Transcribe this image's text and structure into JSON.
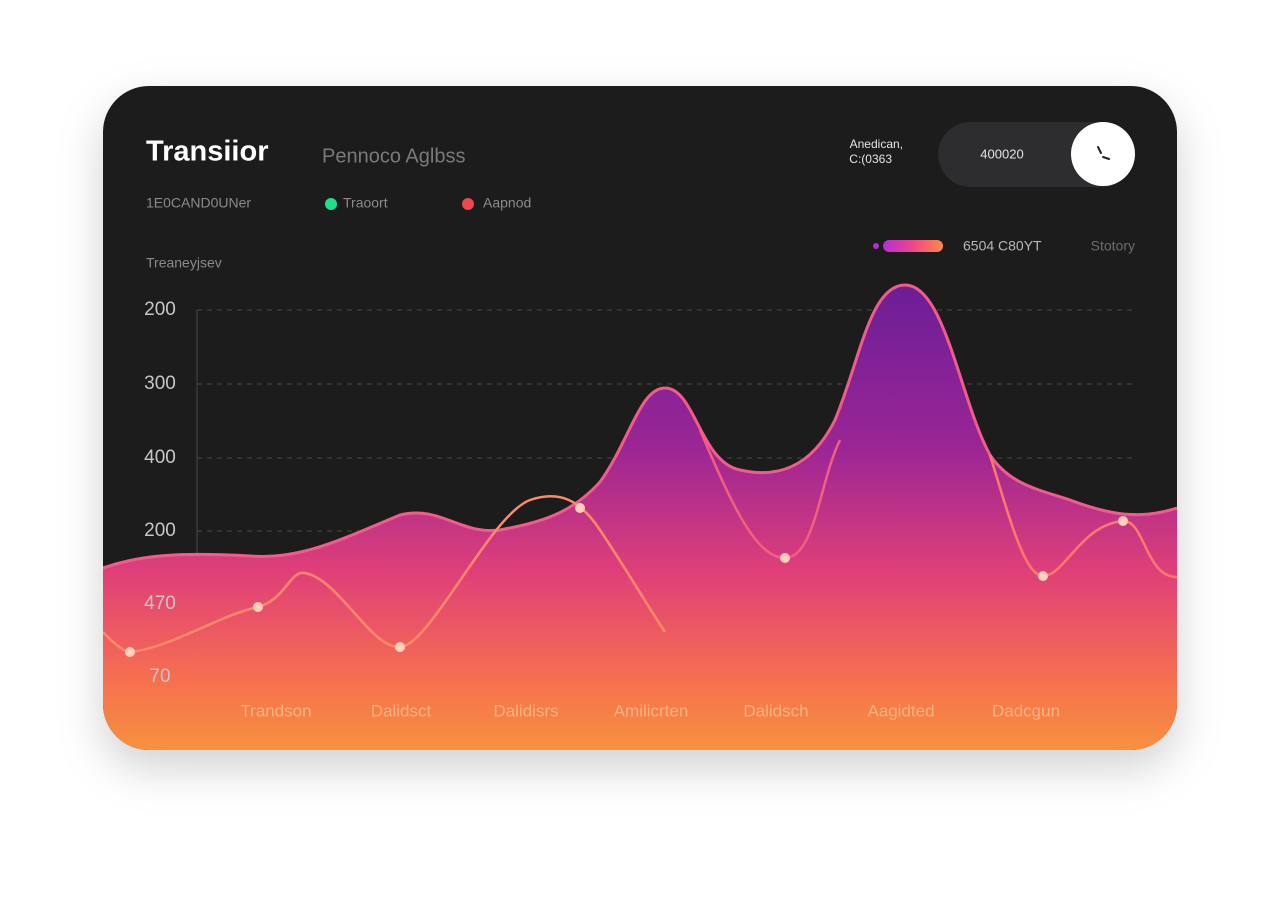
{
  "header": {
    "title": "Transiior",
    "subtitle": "Pennoco Aglbss",
    "account_lines": [
      "Anedican,",
      "C:(0363"
    ],
    "pill_value": "400020"
  },
  "legend": {
    "caption": "1E0CAND0UNer",
    "items": [
      {
        "label": "Traoort"
      },
      {
        "label": "Aapnod"
      }
    ]
  },
  "toolbar": {
    "range_label": "6504 C80YT",
    "filter": "Stotory"
  },
  "chart": {
    "y_axis_title": "Treaneyjsev",
    "y_labels": [
      200,
      300,
      400,
      200,
      470,
      70
    ],
    "x_labels": [
      "Trandson",
      "Dalidsct",
      "Dalidisrs",
      "Amilicrten",
      "Dalidsch",
      "Aagidted",
      "Dadcgun"
    ]
  }
}
